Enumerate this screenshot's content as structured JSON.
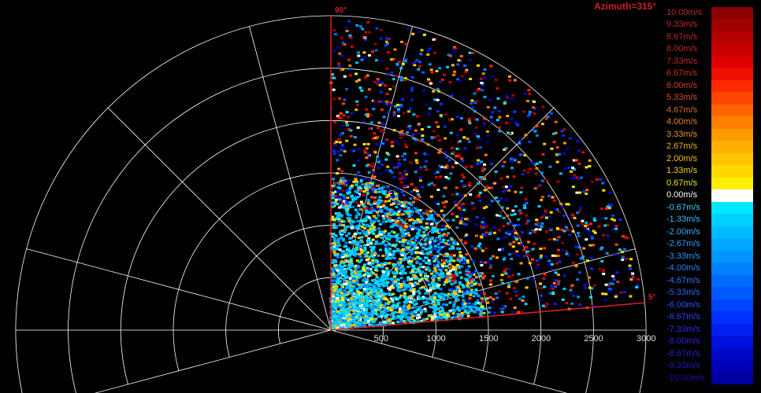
{
  "chart_data": {
    "type": "polar-sector-scatter",
    "title": "Azimuth=315°",
    "sector_edge_labels": [
      "90°",
      "5°"
    ],
    "sector_range_deg": [
      5,
      90
    ],
    "range_ticks": [
      "500",
      "1000",
      "1500",
      "2000",
      "2500",
      "3000"
    ],
    "range_ticks_values": [
      500,
      1000,
      1500,
      2000,
      2500,
      3000
    ],
    "r_max": 3000,
    "ring_step": 500,
    "spoke_step_deg": 30,
    "grid": true,
    "colorbar": {
      "labels": [
        "10.00m/s",
        "9.33m/s",
        "8.67m/s",
        "8.00m/s",
        "7.33m/s",
        "6.67m/s",
        "6.00m/s",
        "5.33m/s",
        "4.67m/s",
        "4.00m/s",
        "3.33m/s",
        "2.67m/s",
        "2.00m/s",
        "1.33m/s",
        "0.67m/s",
        "0.00m/s",
        "-0.67m/s",
        "-1.33m/s",
        "-2.00m/s",
        "-2.67m/s",
        "-3.33m/s",
        "-4.00m/s",
        "-4.67m/s",
        "-5.33m/s",
        "-6.00m/s",
        "-6.67m/s",
        "-7.33m/s",
        "-8.00m/s",
        "-8.67m/s",
        "-9.33m/s",
        "-10.00m/s"
      ],
      "colors": [
        "#8b0000",
        "#a00000",
        "#b40000",
        "#c80000",
        "#dc0000",
        "#f01000",
        "#ff2a00",
        "#ff4600",
        "#ff6400",
        "#ff8000",
        "#ff9a00",
        "#ffb000",
        "#ffc400",
        "#ffd800",
        "#ffee00",
        "#ffffff",
        "#00e8ff",
        "#00d0ff",
        "#00bcff",
        "#00a8ff",
        "#0094ff",
        "#0080ff",
        "#006cff",
        "#0058ff",
        "#0044ff",
        "#0030ff",
        "#0020f0",
        "#0010dc",
        "#0008c8",
        "#0000b4",
        "#0000a0"
      ],
      "label_colors": [
        "#c02828",
        "#c02828",
        "#c02828",
        "#c02828",
        "#c02828",
        "#c83020",
        "#d04020",
        "#d85020",
        "#e06820",
        "#e88020",
        "#f09820",
        "#f0b020",
        "#f0c420",
        "#f0d820",
        "#f0e820",
        "#ffffff",
        "#30d0ff",
        "#30c0ff",
        "#30b0ff",
        "#30a0ff",
        "#3090ff",
        "#3080ff",
        "#3070ff",
        "#3060ff",
        "#3050ff",
        "#3040ff",
        "#3030f0",
        "#3020e0",
        "#2a20d0",
        "#2218c0",
        "#1a10b0"
      ]
    }
  }
}
